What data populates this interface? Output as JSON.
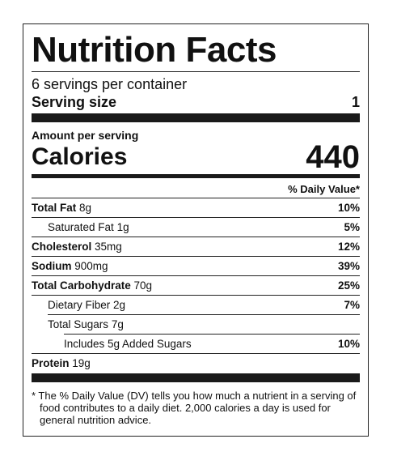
{
  "label": {
    "title": "Nutrition Facts",
    "servings_per_container": "6 servings per container",
    "serving_size_label": "Serving size",
    "serving_size_value": "1",
    "amount_per_serving": "Amount per serving",
    "calories_label": "Calories",
    "calories_value": "440",
    "daily_value_header": "% Daily Value*",
    "nutrients": [
      {
        "name": "Total Fat",
        "amount": "8g",
        "dv": "10%"
      },
      {
        "name": "Saturated Fat",
        "amount": "1g",
        "dv": "5%"
      },
      {
        "name": "Cholesterol",
        "amount": "35mg",
        "dv": "12%"
      },
      {
        "name": "Sodium",
        "amount": "900mg",
        "dv": "39%"
      },
      {
        "name": "Total Carbohydrate",
        "amount": "70g",
        "dv": "25%"
      },
      {
        "name": "Dietary Fiber",
        "amount": "2g",
        "dv": "7%"
      },
      {
        "name": "Total Sugars",
        "amount": "7g",
        "dv": ""
      },
      {
        "name": "Includes 5g Added Sugars",
        "amount": "",
        "dv": "10%"
      },
      {
        "name": "Protein",
        "amount": "19g",
        "dv": ""
      }
    ],
    "footnote": "* The % Daily Value (DV) tells you how much a nutrient in a serving of food contributes to a daily diet. 2,000 calories a day is used for general nutrition advice."
  }
}
